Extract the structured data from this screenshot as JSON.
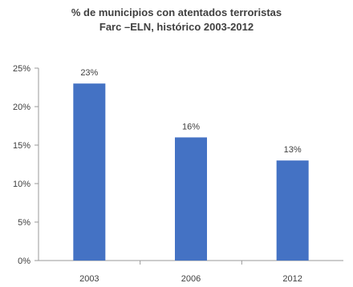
{
  "chart_data": {
    "type": "bar",
    "title": "% de municipios con atentados terroristas",
    "subtitle": "Farc –ELN, histórico 2003-2012",
    "categories": [
      "2003",
      "2006",
      "2012"
    ],
    "values": [
      23,
      16,
      13
    ],
    "value_labels": [
      "23%",
      "16%",
      "13%"
    ],
    "y_ticks": [
      "0%",
      "5%",
      "10%",
      "15%",
      "20%",
      "25%"
    ],
    "y_tick_values": [
      0,
      5,
      10,
      15,
      20,
      25
    ],
    "xlabel": "",
    "ylabel": "",
    "ylim": [
      0,
      25
    ],
    "grid": false,
    "legend": "none",
    "bar_color": "#4472C4"
  }
}
